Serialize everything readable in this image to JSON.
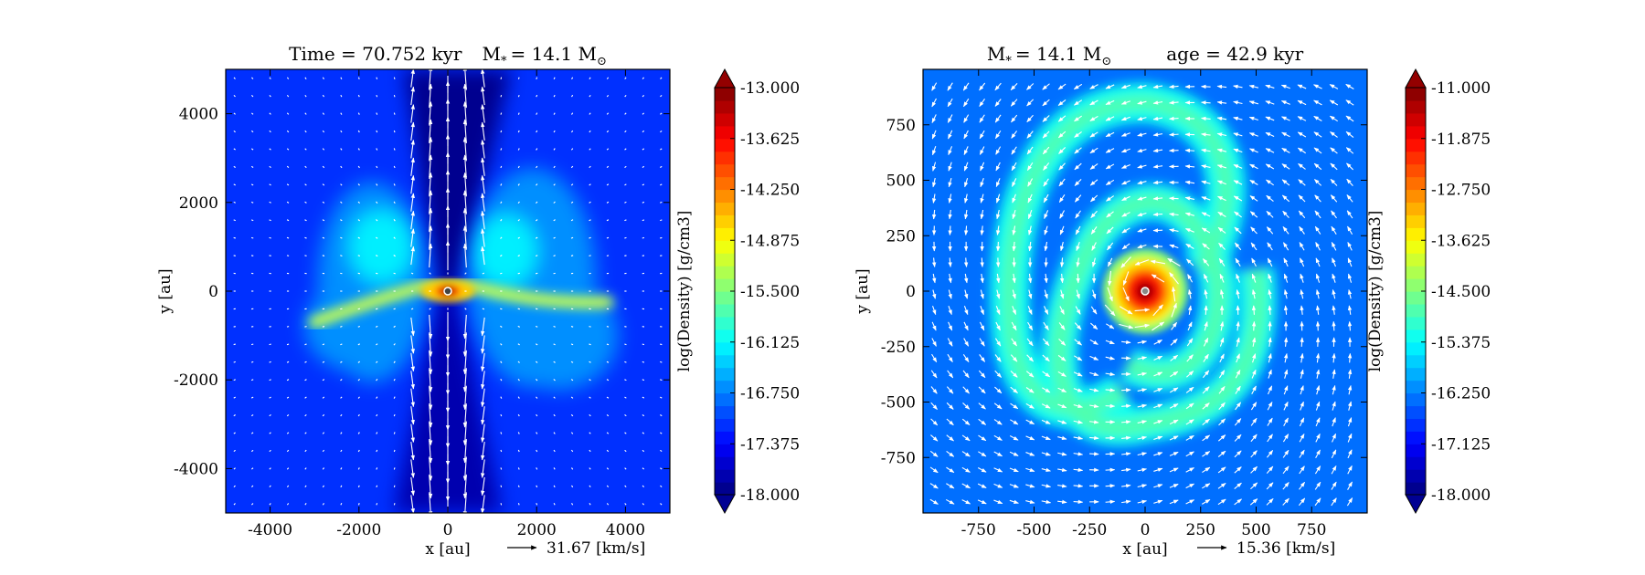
{
  "colors": {
    "jet": [
      "#00007f",
      "#0000ff",
      "#007fff",
      "#00ffff",
      "#7fff7f",
      "#ffff00",
      "#ff7f00",
      "#ff0000",
      "#7f0000"
    ],
    "background": "#ffffff",
    "arrow": "#ffffff",
    "star": "#444444"
  },
  "chart_data": [
    {
      "type": "heatmap",
      "title": "Time = 70.752 kyr    M$_*$ = 14.1 M$_⊙$",
      "title_parts": {
        "main": "Time = 70.752 kyr",
        "mass_sym": "M",
        "mass_sub": "*",
        "mass_val": "= 14.1 M",
        "mass_unit_sub": "⊙"
      },
      "xlabel": "x [au]",
      "ylabel": "y [au]",
      "xlim": [
        -5000,
        5000
      ],
      "ylim": [
        -5000,
        5000
      ],
      "xticks": [
        -4000,
        -2000,
        0,
        2000,
        4000
      ],
      "xtick_labels": [
        "-4000",
        "-2000",
        "0",
        "2000",
        "4000"
      ],
      "yticks": [
        -4000,
        -2000,
        0,
        2000,
        4000
      ],
      "ytick_labels": [
        "-4000",
        "-2000",
        "0",
        "2000",
        "4000"
      ],
      "quiver_key": {
        "label": "31.67 [km/s]"
      },
      "colorbar": {
        "label": "log(Density) [g/cm3]",
        "range": [
          -18.0,
          -13.0
        ],
        "extend": "both",
        "ticks": [
          -13.0,
          -13.625,
          -14.25,
          -14.875,
          -15.5,
          -16.125,
          -16.75,
          -17.375,
          -18.0
        ],
        "tick_labels": [
          "-13.000",
          "-13.625",
          "-14.250",
          "-14.875",
          "-15.500",
          "-16.125",
          "-16.750",
          "-17.375",
          "-18.000"
        ]
      },
      "features": {
        "mode": "edge-on",
        "background_level": -17.2,
        "peak_level": -13.0,
        "outflow_cavity_half_width_au": 1100,
        "disk_extent_au": [
          -3000,
          3600
        ]
      }
    },
    {
      "type": "heatmap",
      "title": "M$_*$ = 14.1 M$_⊙$        age = 42.9 kyr",
      "title_parts": {
        "mass_sym": "M",
        "mass_sub": "*",
        "mass_val": "= 14.1 M",
        "mass_unit_sub": "⊙",
        "age": "age = 42.9 kyr"
      },
      "xlabel": "x [au]",
      "ylabel": "y [au]",
      "xlim": [
        -1000,
        1000
      ],
      "ylim": [
        -1000,
        1000
      ],
      "xticks": [
        -750,
        -500,
        -250,
        0,
        250,
        500,
        750
      ],
      "xtick_labels": [
        "-750",
        "-500",
        "-250",
        "0",
        "250",
        "500",
        "750"
      ],
      "yticks": [
        -750,
        -500,
        -250,
        0,
        250,
        500,
        750
      ],
      "ytick_labels": [
        "-750",
        "-500",
        "-250",
        "0",
        "250",
        "500",
        "750"
      ],
      "quiver_key": {
        "label": "15.36 [km/s]"
      },
      "colorbar": {
        "label": "log(Density) [g/cm3]",
        "range": [
          -18.0,
          -11.0
        ],
        "extend": "both",
        "ticks": [
          -11.0,
          -11.875,
          -12.75,
          -13.625,
          -14.5,
          -15.375,
          -16.25,
          -17.125,
          -18.0
        ],
        "tick_labels": [
          "-11.000",
          "-11.875",
          "-12.750",
          "-13.625",
          "-14.500",
          "-15.375",
          "-16.250",
          "-17.125",
          "-18.000"
        ]
      },
      "features": {
        "mode": "face-on",
        "background_level": -16.3,
        "peak_level": -11.0,
        "core_radius_au": 120,
        "spiral_level": -14.8
      }
    }
  ]
}
